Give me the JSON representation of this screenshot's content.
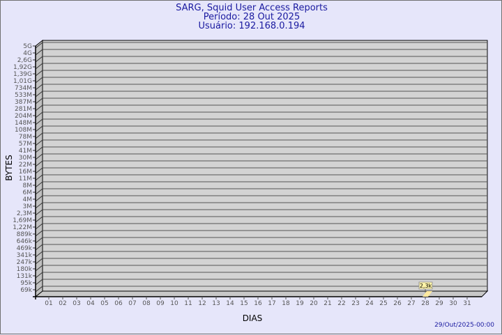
{
  "header": {
    "title": "SARG, Squid User Access Reports",
    "period": "Período: 28 Out 2025",
    "user": "Usuário: 192.168.0.194"
  },
  "footer": {
    "timestamp": "29/Out/2025-00:00"
  },
  "chart_data": {
    "type": "bar",
    "style": "3d",
    "xlabel": "DIAS",
    "ylabel": "BYTES",
    "y_scale": "log",
    "grid": true,
    "categories": [
      "01",
      "02",
      "03",
      "04",
      "05",
      "06",
      "07",
      "08",
      "09",
      "10",
      "11",
      "12",
      "13",
      "14",
      "15",
      "16",
      "17",
      "18",
      "19",
      "20",
      "21",
      "22",
      "23",
      "24",
      "25",
      "26",
      "27",
      "28",
      "29",
      "30",
      "31"
    ],
    "y_ticks": [
      "5G",
      "4G",
      "2,6G",
      "1,92G",
      "1,39G",
      "1,01G",
      "734M",
      "533M",
      "387M",
      "281M",
      "204M",
      "148M",
      "108M",
      "78M",
      "57M",
      "41M",
      "30M",
      "22M",
      "16M",
      "11M",
      "8M",
      "6M",
      "4M",
      "3M",
      "2,3M",
      "1,69M",
      "1,22M",
      "889k",
      "646k",
      "469k",
      "341k",
      "247k",
      "180k",
      "131k",
      "95k",
      "69k"
    ],
    "series": [
      {
        "values": {
          "28": 2300
        }
      }
    ],
    "data_labels": {
      "28": "2,3k"
    },
    "colors": {
      "background": "#e6e6fa",
      "plot": "#d3d3d3",
      "bar": "#ffe9a0",
      "label_bg": "#fff4a8",
      "title": "#1a1aa0"
    }
  }
}
